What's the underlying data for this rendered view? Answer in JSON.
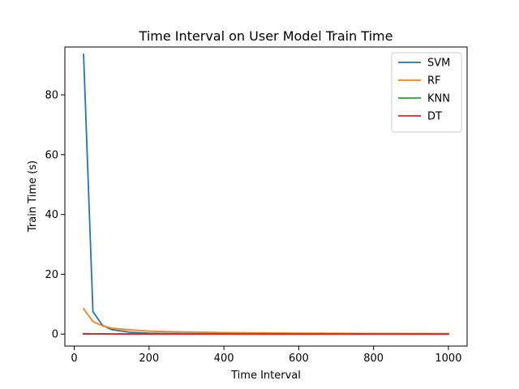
{
  "chart_data": {
    "type": "line",
    "title": "Time Interval on User Model Train Time",
    "xlabel": "Time Interval",
    "ylabel": "Train Time (s)",
    "xlim": [
      -25,
      1050
    ],
    "ylim": [
      -4,
      96
    ],
    "xticks": [
      0,
      200,
      400,
      600,
      800,
      1000
    ],
    "yticks": [
      0,
      20,
      40,
      60,
      80
    ],
    "grid": false,
    "legend_position": "top-right",
    "x": [
      25,
      50,
      75,
      100,
      150,
      200,
      250,
      300,
      400,
      500,
      600,
      700,
      800,
      900,
      1000
    ],
    "series": [
      {
        "name": "SVM",
        "color": "#1f77b4",
        "values": [
          93.5,
          7.5,
          3.0,
          1.5,
          0.6,
          0.3,
          0.2,
          0.15,
          0.1,
          0.08,
          0.06,
          0.05,
          0.05,
          0.04,
          0.04
        ]
      },
      {
        "name": "RF",
        "color": "#ff7f0e",
        "values": [
          8.5,
          4.2,
          2.8,
          2.0,
          1.4,
          1.0,
          0.8,
          0.7,
          0.5,
          0.4,
          0.3,
          0.25,
          0.2,
          0.2,
          0.15
        ]
      },
      {
        "name": "KNN",
        "color": "#2ca02c",
        "values": [
          0.05,
          0.04,
          0.03,
          0.03,
          0.02,
          0.02,
          0.02,
          0.02,
          0.01,
          0.01,
          0.01,
          0.01,
          0.01,
          0.01,
          0.01
        ]
      },
      {
        "name": "DT",
        "color": "#d62728",
        "values": [
          0.15,
          0.1,
          0.08,
          0.07,
          0.05,
          0.04,
          0.04,
          0.03,
          0.03,
          0.02,
          0.02,
          0.02,
          0.02,
          0.02,
          0.02
        ]
      }
    ]
  }
}
